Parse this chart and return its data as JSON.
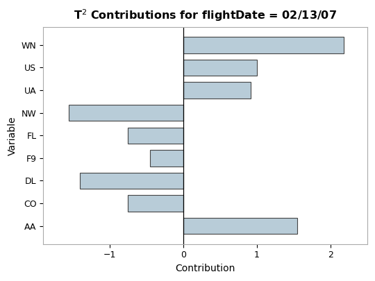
{
  "title": "T$^2$ Contributions for flightDate = 02/13/07",
  "xlabel": "Contribution",
  "ylabel": "Variable",
  "categories": [
    "AA",
    "CO",
    "DL",
    "F9",
    "FL",
    "NW",
    "UA",
    "US",
    "WN"
  ],
  "values": [
    1.55,
    -0.75,
    -1.4,
    -0.45,
    -0.75,
    -1.55,
    0.92,
    1.0,
    2.18
  ],
  "bar_color": "#b8ccd8",
  "bar_edge_color": "#444444",
  "bar_edge_width": 0.8,
  "xlim": [
    -1.9,
    2.5
  ],
  "xticks": [
    -1,
    0,
    1,
    2
  ],
  "background_color": "#ffffff",
  "plot_bg_color": "#ffffff",
  "title_fontsize": 11.5,
  "axis_label_fontsize": 10,
  "tick_fontsize": 9,
  "bar_height": 0.72
}
